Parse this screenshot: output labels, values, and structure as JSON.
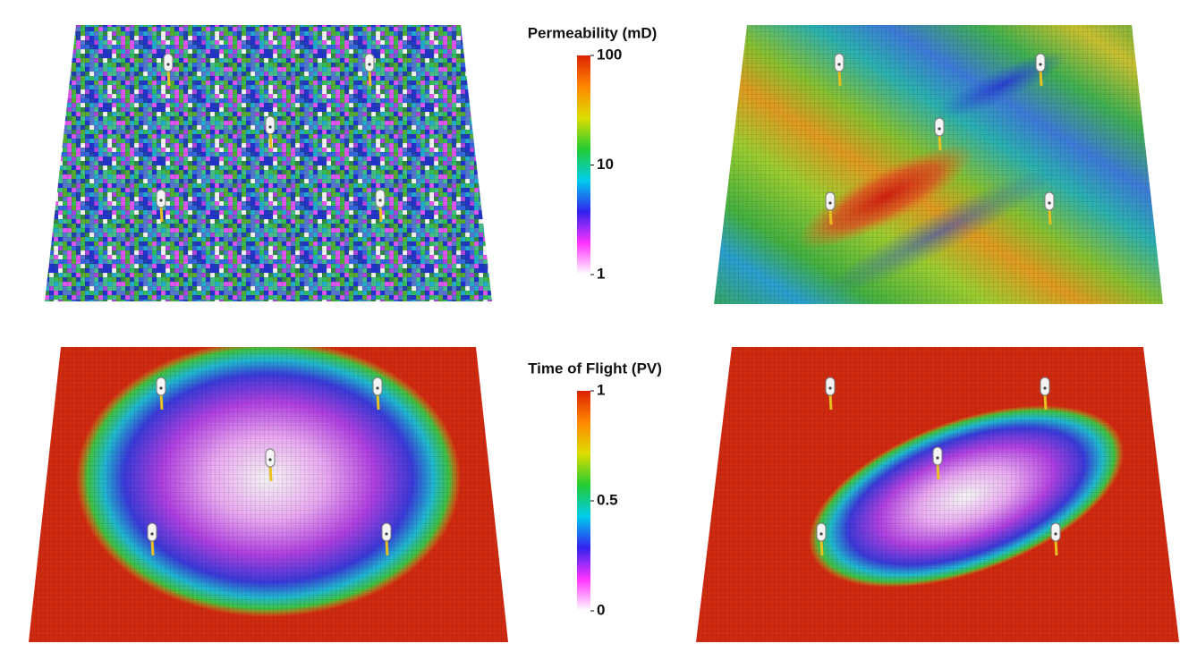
{
  "colorbars": [
    {
      "title": "Permeability (mD)",
      "range": [
        1,
        100
      ],
      "ticks": [
        1,
        10,
        100
      ],
      "log": true,
      "colors": [
        "#ffffff",
        "#ff33ff",
        "#3322ee",
        "#00ccee",
        "#22cc33",
        "#dddd00",
        "#ff8800",
        "#dd2200"
      ]
    },
    {
      "title": "Time of Flight (PV)",
      "range": [
        0,
        1
      ],
      "ticks": [
        0,
        0.5,
        1
      ],
      "log": false,
      "colors": [
        "#ffffff",
        "#ff33ff",
        "#3322ee",
        "#00ccee",
        "#22cc33",
        "#dddd00",
        "#ff8800",
        "#dd2200"
      ]
    }
  ]
}
